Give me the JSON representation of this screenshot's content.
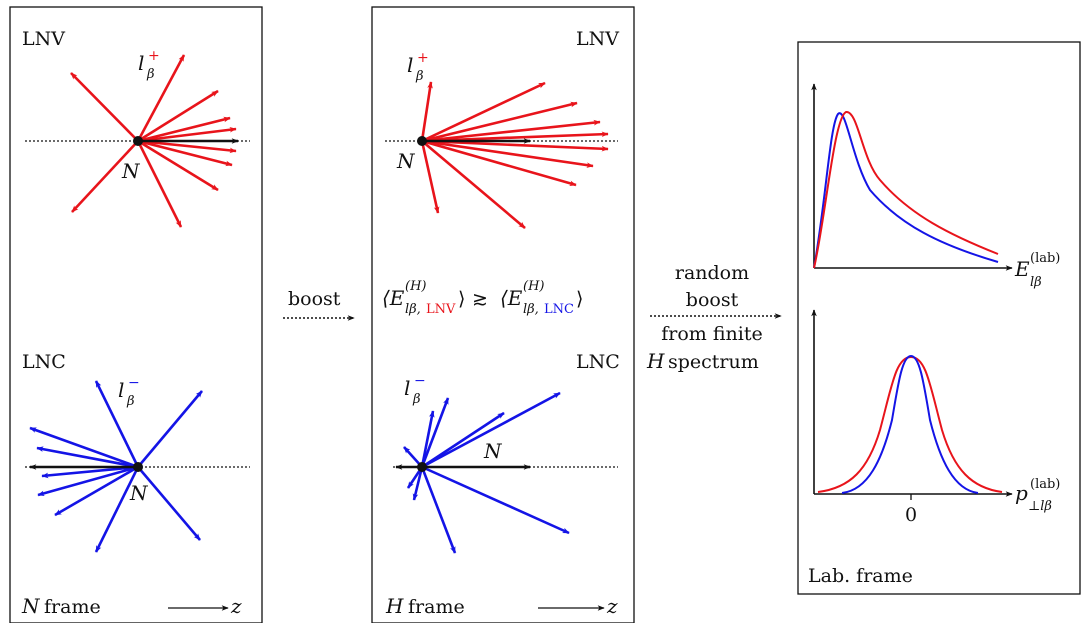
{
  "colors": {
    "lnv": "#e8141b",
    "lnc": "#1414e6",
    "ink": "#111111"
  },
  "left_panel": {
    "lnv_label": "LNV",
    "lnc_label": "LNC",
    "lepton_plus": "l",
    "lepton_plus_sub": "β",
    "lepton_plus_sup": "+",
    "lepton_minus": "l",
    "lepton_minus_sub": "β",
    "lepton_minus_sup": "−",
    "neutrino_label_top": "N",
    "neutrino_label_bottom": "N",
    "frame_symbol": "N",
    "frame_word": "frame",
    "axis_label": "z"
  },
  "arrow_boost": {
    "label": "boost"
  },
  "middle_panel": {
    "lnv_label": "LNV",
    "lnc_label": "LNC",
    "lepton_plus": "l",
    "lepton_plus_sub": "β",
    "lepton_plus_sup": "+",
    "lepton_minus": "l",
    "lepton_minus_sub": "β",
    "lepton_minus_sup": "−",
    "neutrino_label_top": "N",
    "neutrino_label_bottom": "N",
    "relation": {
      "lhs_open": "⟨E",
      "lhs_sup": "(H)",
      "lhs_sub_base": "lβ,",
      "lhs_sub_tag": "LNV",
      "lhs_close": "⟩",
      "operator": "≳",
      "rhs_open": "⟨E",
      "rhs_sup": "(H)",
      "rhs_sub_base": "lβ,",
      "rhs_sub_tag": "LNC",
      "rhs_close": "⟩"
    },
    "frame_symbol": "H",
    "frame_word": "frame",
    "axis_label": "z"
  },
  "arrow_random": {
    "line1": "random",
    "line2": "boost",
    "line3": "from finite",
    "line4_symbol": "H",
    "line4_word": "spectrum"
  },
  "right_panel": {
    "energy_axis_main": "E",
    "energy_axis_sup": "(lab)",
    "energy_axis_sub": "lβ",
    "pt_axis_main": "p",
    "pt_axis_sup": "(lab)",
    "pt_axis_sub": "⊥lβ",
    "pt_zero_tick": "0",
    "frame_label": "Lab. frame"
  }
}
